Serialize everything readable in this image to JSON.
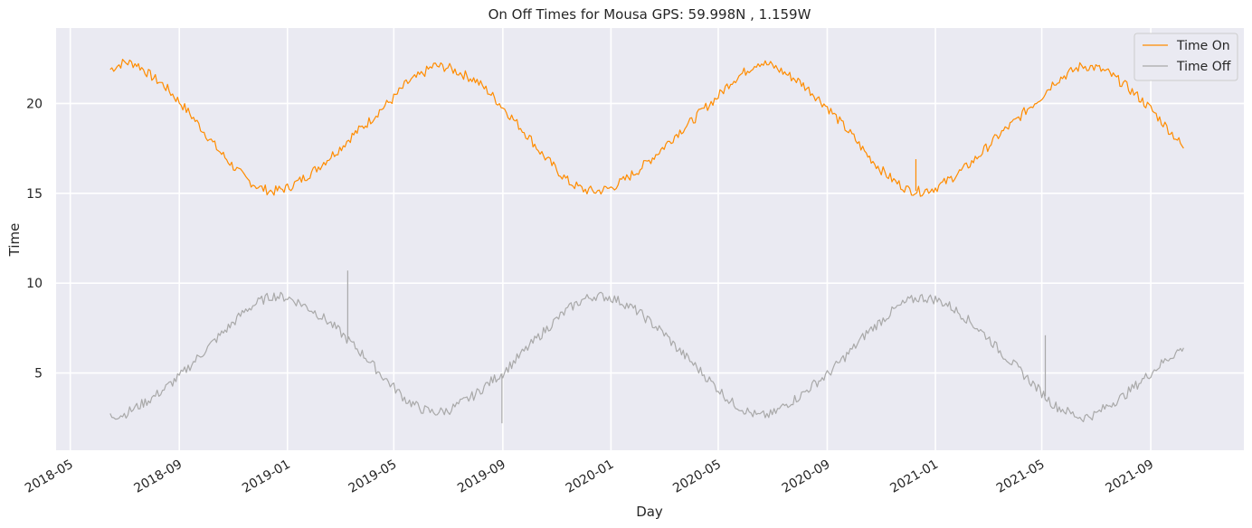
{
  "chart_data": {
    "type": "line",
    "title": "On Off Times for Mousa  GPS: 59.998N , 1.159W",
    "xlabel": "Day",
    "ylabel": "Time",
    "x_range": [
      "2018-04-15",
      "2021-12-15"
    ],
    "x_ticks": [
      "2018-05",
      "2018-09",
      "2019-01",
      "2019-05",
      "2019-09",
      "2020-01",
      "2020-05",
      "2020-09",
      "2021-01",
      "2021-05",
      "2021-09"
    ],
    "ylim": [
      0.7,
      24.2
    ],
    "y_ticks": [
      5,
      10,
      15,
      20
    ],
    "grid": true,
    "legend_position": "top-right",
    "series": [
      {
        "name": "Time On",
        "color": "#ff8c00",
        "x": [
          "2018-06-15",
          "2018-07-01",
          "2018-07-15",
          "2018-08-01",
          "2018-08-15",
          "2018-09-01",
          "2018-09-15",
          "2018-10-01",
          "2018-10-15",
          "2018-11-01",
          "2018-11-15",
          "2018-12-01",
          "2018-12-15",
          "2019-01-01",
          "2019-01-15",
          "2019-02-01",
          "2019-02-15",
          "2019-03-01",
          "2019-03-15",
          "2019-04-01",
          "2019-04-15",
          "2019-05-01",
          "2019-05-15",
          "2019-06-01",
          "2019-06-15",
          "2019-07-01",
          "2019-07-15",
          "2019-08-01",
          "2019-08-15",
          "2019-09-01",
          "2019-09-15",
          "2019-10-01",
          "2019-10-15",
          "2019-11-01",
          "2019-11-15",
          "2019-12-01",
          "2019-12-15",
          "2020-01-01",
          "2020-01-15",
          "2020-02-01",
          "2020-02-15",
          "2020-03-01",
          "2020-03-15",
          "2020-04-01",
          "2020-04-15",
          "2020-05-01",
          "2020-05-15",
          "2020-06-01",
          "2020-06-15",
          "2020-07-01",
          "2020-07-15",
          "2020-08-01",
          "2020-08-15",
          "2020-09-01",
          "2020-09-15",
          "2020-10-01",
          "2020-10-15",
          "2020-11-01",
          "2020-11-15",
          "2020-12-01",
          "2020-12-15",
          "2021-01-01",
          "2021-01-15",
          "2021-02-01",
          "2021-02-15",
          "2021-03-01",
          "2021-03-15",
          "2021-04-01",
          "2021-04-15",
          "2021-05-01",
          "2021-05-15",
          "2021-06-01",
          "2021-06-15",
          "2021-07-01",
          "2021-07-15",
          "2021-08-01",
          "2021-08-15",
          "2021-09-01",
          "2021-09-15",
          "2021-10-01",
          "2021-10-08"
        ],
        "values": [
          21.9,
          22.3,
          22.2,
          21.5,
          21.0,
          20.1,
          19.3,
          18.3,
          17.4,
          16.5,
          15.8,
          15.3,
          15.1,
          15.3,
          15.7,
          16.3,
          16.9,
          17.5,
          18.2,
          18.9,
          19.6,
          20.3,
          21.1,
          21.6,
          22.1,
          22.0,
          21.7,
          21.3,
          20.7,
          19.8,
          19.0,
          18.1,
          17.2,
          16.3,
          15.6,
          15.2,
          15.1,
          15.3,
          15.7,
          16.3,
          16.9,
          17.6,
          18.3,
          19.0,
          19.7,
          20.4,
          21.2,
          21.8,
          22.3,
          22.1,
          21.7,
          21.2,
          20.6,
          19.8,
          19.0,
          18.1,
          17.2,
          16.3,
          15.7,
          15.2,
          15.1,
          15.3,
          15.7,
          16.3,
          16.9,
          17.6,
          18.3,
          19.0,
          19.7,
          20.4,
          21.2,
          21.7,
          22.1,
          22.0,
          21.7,
          21.1,
          20.5,
          19.7,
          18.9,
          18.0,
          17.5
        ]
      },
      {
        "name": "Time Off",
        "color": "#a9a9a9",
        "x": [
          "2018-06-15",
          "2018-07-01",
          "2018-07-15",
          "2018-08-01",
          "2018-08-15",
          "2018-09-01",
          "2018-09-15",
          "2018-10-01",
          "2018-10-15",
          "2018-11-01",
          "2018-11-15",
          "2018-12-01",
          "2018-12-15",
          "2019-01-01",
          "2019-01-15",
          "2019-02-01",
          "2019-02-15",
          "2019-03-01",
          "2019-03-15",
          "2019-04-01",
          "2019-04-15",
          "2019-05-01",
          "2019-05-15",
          "2019-06-01",
          "2019-06-15",
          "2019-07-01",
          "2019-07-15",
          "2019-08-01",
          "2019-08-15",
          "2019-09-01",
          "2019-09-15",
          "2019-10-01",
          "2019-10-15",
          "2019-11-01",
          "2019-11-15",
          "2019-12-01",
          "2019-12-15",
          "2020-01-01",
          "2020-01-15",
          "2020-02-01",
          "2020-02-15",
          "2020-03-01",
          "2020-03-15",
          "2020-04-01",
          "2020-04-15",
          "2020-05-01",
          "2020-05-15",
          "2020-06-01",
          "2020-06-15",
          "2020-07-01",
          "2020-07-15",
          "2020-08-01",
          "2020-08-15",
          "2020-09-01",
          "2020-09-15",
          "2020-10-01",
          "2020-10-15",
          "2020-11-01",
          "2020-11-15",
          "2020-12-01",
          "2020-12-15",
          "2021-01-01",
          "2021-01-15",
          "2021-02-01",
          "2021-02-15",
          "2021-03-01",
          "2021-03-15",
          "2021-04-01",
          "2021-04-15",
          "2021-05-01",
          "2021-05-15",
          "2021-06-01",
          "2021-06-15",
          "2021-07-01",
          "2021-07-15",
          "2021-08-01",
          "2021-08-15",
          "2021-09-01",
          "2021-09-15",
          "2021-10-01",
          "2021-10-08"
        ],
        "values": [
          2.6,
          2.7,
          3.1,
          3.6,
          4.1,
          4.8,
          5.5,
          6.3,
          7.0,
          7.8,
          8.5,
          9.0,
          9.3,
          9.2,
          8.9,
          8.4,
          7.9,
          7.3,
          6.6,
          5.8,
          5.0,
          4.2,
          3.5,
          3.0,
          2.8,
          2.9,
          3.3,
          3.8,
          4.4,
          5.0,
          5.7,
          6.5,
          7.2,
          8.0,
          8.6,
          9.1,
          9.3,
          9.2,
          8.9,
          8.4,
          7.8,
          7.2,
          6.4,
          5.6,
          4.9,
          4.1,
          3.4,
          2.9,
          2.6,
          2.7,
          3.2,
          3.7,
          4.3,
          4.9,
          5.6,
          6.4,
          7.2,
          7.9,
          8.5,
          9.0,
          9.2,
          9.1,
          8.8,
          8.2,
          7.6,
          7.0,
          6.2,
          5.4,
          4.7,
          3.9,
          3.2,
          2.8,
          2.5,
          2.7,
          3.2,
          3.7,
          4.3,
          5.0,
          5.6,
          6.2,
          6.4
        ]
      }
    ],
    "spikes": [
      {
        "series": "Time Off",
        "x": "2019-03-10",
        "value": 10.7
      },
      {
        "series": "Time Off",
        "x": "2019-08-31",
        "value": 2.2
      },
      {
        "series": "Time Off",
        "x": "2021-05-05",
        "value": 7.1
      },
      {
        "series": "Time On",
        "x": "2020-12-10",
        "value": 16.9
      }
    ]
  }
}
